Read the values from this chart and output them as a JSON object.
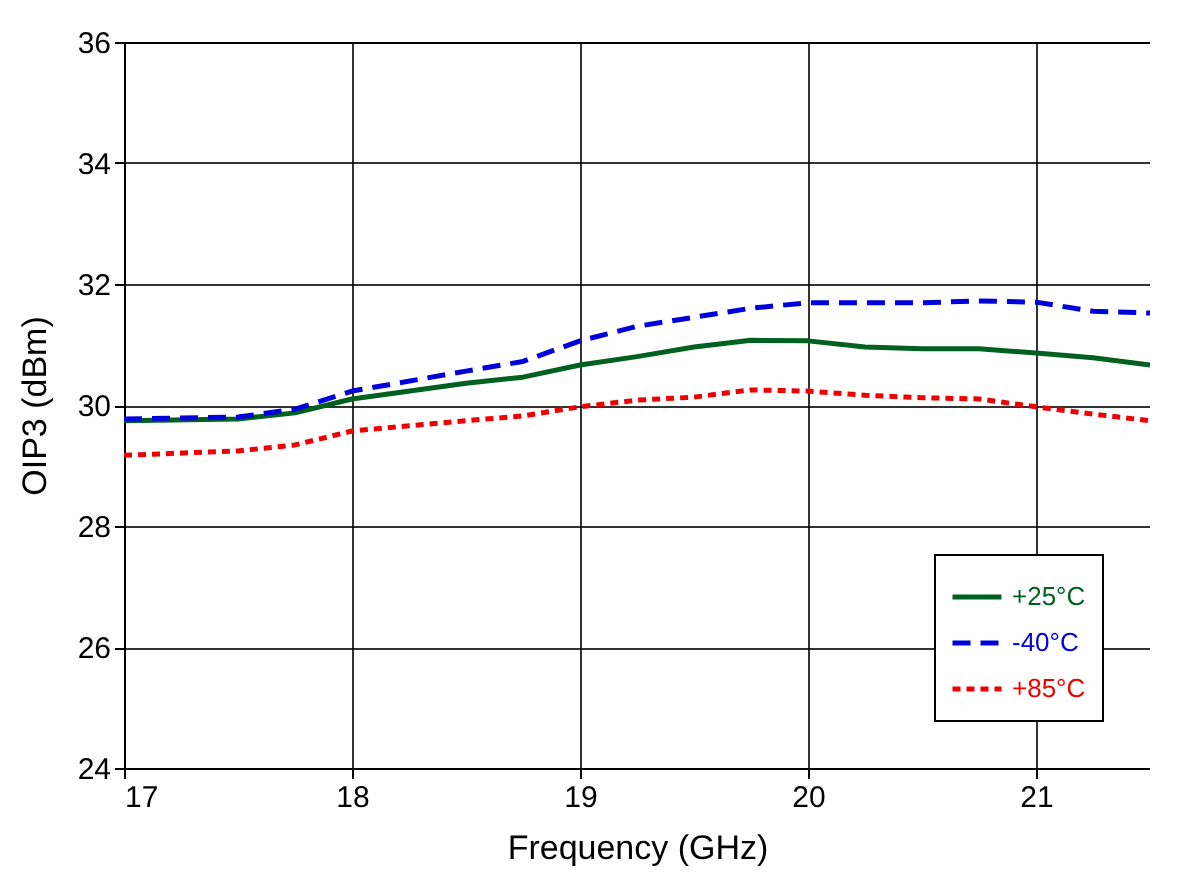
{
  "chart_data": {
    "type": "line",
    "xlabel": "Frequency (GHz)",
    "ylabel": "OIP3 (dBm)",
    "xlim": [
      17,
      21.5
    ],
    "xticks": [
      17,
      18,
      19,
      20,
      21
    ],
    "ylim": [
      24,
      36
    ],
    "yticks": [
      24,
      26,
      28,
      30,
      32,
      34,
      36
    ],
    "grid": true,
    "legend": "bottom right",
    "marker": "none",
    "x": [
      17,
      17.5,
      17.75,
      18,
      18.5,
      18.75,
      19,
      19.25,
      19.5,
      19.75,
      20,
      20.25,
      20.5,
      20.75,
      21,
      21.25,
      21.5
    ],
    "series": [
      {
        "name": "+25°C",
        "color": "#006020",
        "line_style": "solid",
        "values": [
          29.74,
          29.77,
          29.87,
          30.1,
          30.36,
          30.46,
          30.66,
          30.8,
          30.96,
          31.07,
          31.06,
          30.96,
          30.93,
          30.93,
          30.86,
          30.78,
          30.66
        ]
      },
      {
        "name": "-40°C",
        "color": "#0000dd",
        "line_style": "dashed",
        "values": [
          29.77,
          29.8,
          29.93,
          30.23,
          30.56,
          30.72,
          31.06,
          31.3,
          31.45,
          31.6,
          31.69,
          31.69,
          31.69,
          31.72,
          31.7,
          31.55,
          31.52
        ]
      },
      {
        "name": "+85°C",
        "color": "#ee0000",
        "line_style": "dotted",
        "values": [
          29.17,
          29.24,
          29.34,
          29.57,
          29.74,
          29.82,
          29.97,
          30.08,
          30.13,
          30.25,
          30.23,
          30.16,
          30.12,
          30.1,
          29.97,
          29.85,
          29.74
        ]
      }
    ]
  }
}
